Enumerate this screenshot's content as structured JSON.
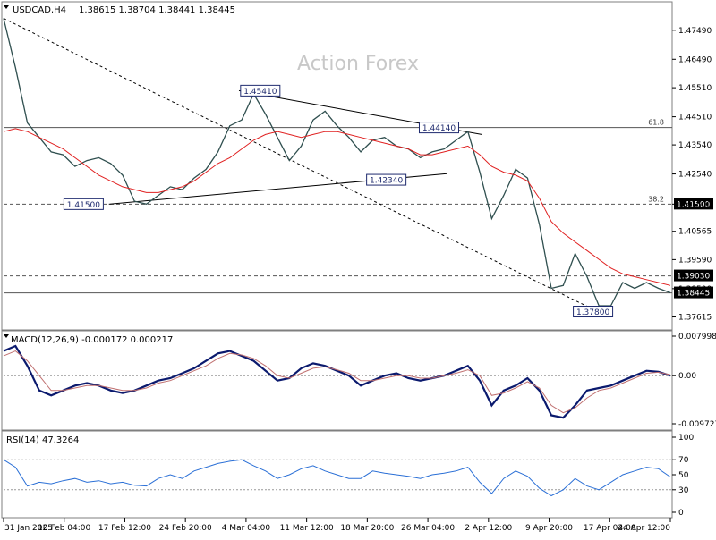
{
  "header": {
    "symbol": "USDCAD,H4",
    "ohlc": "1.38615 1.38704 1.38441 1.38445"
  },
  "watermark": "Action Forex",
  "colors": {
    "price": "#2f4f4f",
    "ma": "#e02020",
    "macd": "#0b1a6e",
    "signal": "#c07070",
    "rsi": "#2a6fd6",
    "label_bg": "#1e2a6e",
    "level_label_bg": "#000000"
  },
  "chart_data": [
    {
      "type": "line",
      "panel": "price",
      "ylim": [
        1.372,
        1.481
      ],
      "y_ticks": [
        "1.47490",
        "1.46490",
        "1.45510",
        "1.44510",
        "1.43540",
        "1.42540",
        "1.41500",
        "1.40565",
        "1.39590",
        "1.38590",
        "1.37615"
      ],
      "x_ticks": [
        "31 Jan 2025",
        "10 Feb 04:00",
        "17 Feb 12:00",
        "24 Feb 20:00",
        "4 Mar 04:00",
        "11 Mar 12:00",
        "18 Mar 20:00",
        "26 Mar 04:00",
        "2 Apr 12:00",
        "9 Apr 20:00",
        "17 Apr 04:00",
        "24 Apr 12:00"
      ],
      "series": [
        {
          "role": "price",
          "values": [
            1.479,
            1.462,
            1.443,
            1.438,
            1.433,
            1.432,
            1.428,
            1.43,
            1.431,
            1.429,
            1.425,
            1.416,
            1.415,
            1.418,
            1.421,
            1.42,
            1.424,
            1.427,
            1.433,
            1.442,
            1.444,
            1.453,
            1.446,
            1.438,
            1.43,
            1.435,
            1.444,
            1.447,
            1.442,
            1.438,
            1.433,
            1.437,
            1.438,
            1.435,
            1.434,
            1.431,
            1.433,
            1.434,
            1.437,
            1.44,
            1.426,
            1.41,
            1.418,
            1.427,
            1.424,
            1.408,
            1.386,
            1.387,
            1.398,
            1.39,
            1.38,
            1.38,
            1.388,
            1.386,
            1.388,
            1.386,
            1.3845
          ]
        },
        {
          "role": "ma",
          "values": [
            1.44,
            1.441,
            1.44,
            1.438,
            1.436,
            1.434,
            1.431,
            1.428,
            1.425,
            1.423,
            1.421,
            1.42,
            1.419,
            1.419,
            1.42,
            1.421,
            1.423,
            1.426,
            1.429,
            1.431,
            1.434,
            1.437,
            1.439,
            1.44,
            1.439,
            1.438,
            1.439,
            1.44,
            1.44,
            1.439,
            1.438,
            1.437,
            1.436,
            1.435,
            1.434,
            1.432,
            1.432,
            1.433,
            1.434,
            1.435,
            1.432,
            1.428,
            1.426,
            1.425,
            1.423,
            1.417,
            1.409,
            1.405,
            1.402,
            1.399,
            1.396,
            1.393,
            1.391,
            1.39,
            1.389,
            1.388,
            1.387
          ]
        }
      ],
      "annotations": [
        {
          "text": "1.45410",
          "x": 0.385,
          "y": 1.4541
        },
        {
          "text": "1.44140",
          "x": 0.653,
          "y": 1.4414
        },
        {
          "text": "1.42340",
          "x": 0.574,
          "y": 1.4234
        },
        {
          "text": "1.41500",
          "x": 0.12,
          "y": 1.415
        },
        {
          "text": "1.37800",
          "x": 0.884,
          "y": 1.378
        }
      ],
      "levels": [
        {
          "label": "61.8",
          "value": 1.4414,
          "style": "solid"
        },
        {
          "label": "38.2",
          "value": 1.415,
          "style": "dashed",
          "price_label": "1.41500"
        },
        {
          "label": "",
          "value": 1.3903,
          "style": "dashed",
          "price_label": "1.39030"
        },
        {
          "label": "",
          "value": 1.38445,
          "style": "solid",
          "price_label": "1.38445"
        }
      ],
      "trendlines": [
        {
          "from": [
            0.0,
            1.479
          ],
          "to": [
            0.891,
            1.378
          ],
          "style": "dotted"
        },
        {
          "from": [
            0.353,
            1.4541
          ],
          "to": [
            0.717,
            1.439
          ],
          "style": "solid"
        },
        {
          "from": [
            0.158,
            1.415
          ],
          "to": [
            0.665,
            1.4255
          ],
          "style": "solid"
        }
      ]
    },
    {
      "type": "line",
      "panel": "macd",
      "title": "MACD(12,26,9) -0.000172 0.000217",
      "ylim": [
        -0.009727,
        0.007998
      ],
      "y_ticks": [
        "0.007998",
        "0.00",
        "-0.009727"
      ],
      "series": [
        {
          "role": "macd",
          "values": [
            0.005,
            0.006,
            0.002,
            -0.003,
            -0.004,
            -0.003,
            -0.002,
            -0.0015,
            -0.002,
            -0.003,
            -0.0035,
            -0.003,
            -0.002,
            -0.001,
            -0.0005,
            0.0005,
            0.0015,
            0.003,
            0.0045,
            0.005,
            0.004,
            0.003,
            0.001,
            -0.001,
            -0.0005,
            0.0015,
            0.0025,
            0.002,
            0.001,
            0.0,
            -0.002,
            -0.001,
            0.0,
            0.0005,
            -0.0005,
            -0.001,
            -0.0005,
            0.0,
            0.001,
            0.002,
            -0.001,
            -0.006,
            -0.003,
            -0.002,
            -0.0005,
            -0.003,
            -0.008,
            -0.0085,
            -0.006,
            -0.003,
            -0.0025,
            -0.002,
            -0.001,
            0.0,
            0.001,
            0.0008,
            0.0
          ]
        },
        {
          "role": "signal",
          "values": [
            0.004,
            0.005,
            0.003,
            0.0,
            -0.003,
            -0.003,
            -0.0025,
            -0.002,
            -0.002,
            -0.0025,
            -0.003,
            -0.003,
            -0.0025,
            -0.0015,
            -0.001,
            0.0,
            0.001,
            0.002,
            0.0035,
            0.0045,
            0.0042,
            0.0035,
            0.002,
            0.0,
            -0.0005,
            0.0005,
            0.0015,
            0.0018,
            0.0012,
            0.0005,
            -0.001,
            -0.001,
            -0.0005,
            0.0,
            0.0,
            -0.0005,
            -0.0005,
            0.0,
            0.0005,
            0.0012,
            0.0,
            -0.004,
            -0.0035,
            -0.0025,
            -0.0012,
            -0.0025,
            -0.006,
            -0.0075,
            -0.0065,
            -0.0045,
            -0.003,
            -0.0025,
            -0.0015,
            -0.0005,
            0.0005,
            0.0007,
            0.0002
          ]
        }
      ]
    },
    {
      "type": "line",
      "panel": "rsi",
      "title": "RSI(14) 47.3264",
      "ylim": [
        0,
        100
      ],
      "y_ticks": [
        "100",
        "70",
        "50",
        "30",
        "0"
      ],
      "series": [
        {
          "role": "rsi",
          "values": [
            70,
            60,
            35,
            40,
            38,
            42,
            45,
            40,
            42,
            38,
            40,
            36,
            35,
            45,
            50,
            45,
            55,
            60,
            65,
            68,
            70,
            62,
            55,
            45,
            50,
            58,
            62,
            55,
            50,
            45,
            45,
            55,
            52,
            50,
            48,
            45,
            50,
            52,
            55,
            60,
            40,
            25,
            45,
            55,
            48,
            32,
            22,
            30,
            45,
            35,
            30,
            40,
            50,
            55,
            60,
            58,
            47
          ]
        }
      ]
    }
  ]
}
